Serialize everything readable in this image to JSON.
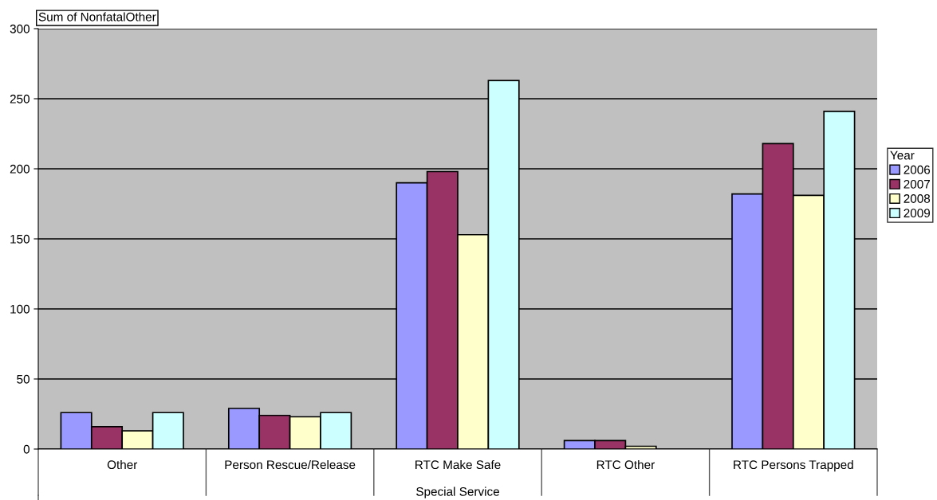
{
  "chart_data": {
    "type": "bar",
    "ylabel": "Sum of NonfatalOther",
    "xlabel": "Special Service",
    "legend_title": "Year",
    "categories": [
      "Other",
      "Person Rescue/Release",
      "RTC Make Safe",
      "RTC Other",
      "RTC Persons Trapped"
    ],
    "series": [
      {
        "name": "2006",
        "color": "#9999ff",
        "values": [
          26,
          29,
          190,
          6,
          182
        ]
      },
      {
        "name": "2007",
        "color": "#993366",
        "values": [
          16,
          24,
          198,
          6,
          218
        ]
      },
      {
        "name": "2008",
        "color": "#ffffcc",
        "values": [
          13,
          23,
          153,
          2,
          181
        ]
      },
      {
        "name": "2009",
        "color": "#ccffff",
        "values": [
          26,
          26,
          263,
          null,
          241
        ]
      }
    ],
    "ylim": [
      0,
      300
    ],
    "yticks": [
      0,
      50,
      100,
      150,
      200,
      250,
      300
    ],
    "grid": "y",
    "legend": "right"
  }
}
